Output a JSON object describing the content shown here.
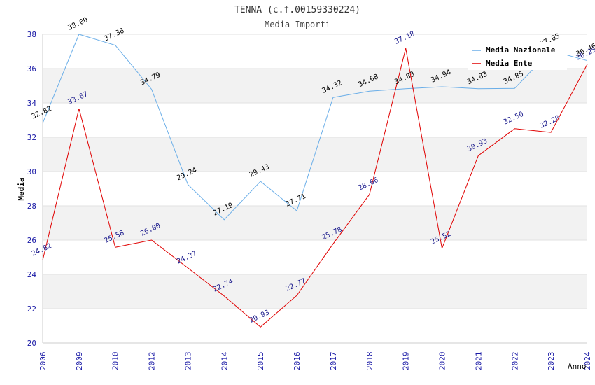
{
  "chart_data": {
    "type": "line",
    "title": "TENNA (c.f.00159330224)",
    "subtitle": "Media Importi",
    "ylabel": "Media",
    "xlabel": "Anno",
    "ylim": [
      20,
      38
    ],
    "yticks": [
      20,
      22,
      24,
      26,
      28,
      30,
      32,
      34,
      36,
      38
    ],
    "categories": [
      "2006",
      "2009",
      "2010",
      "2012",
      "2013",
      "2014",
      "2015",
      "2016",
      "2017",
      "2018",
      "2019",
      "2020",
      "2021",
      "2022",
      "2023",
      "2024"
    ],
    "series": [
      {
        "name": "Media Nazionale",
        "color": "#6aaee8",
        "values": [
          32.82,
          38.0,
          37.36,
          34.79,
          29.24,
          27.19,
          29.43,
          27.71,
          34.32,
          34.68,
          34.83,
          34.94,
          34.83,
          34.85,
          37.05,
          36.46
        ],
        "labels": [
          "32.82",
          "38.00",
          "37.36",
          "34.79",
          "29.24",
          "27.19",
          "29.43",
          "27.71",
          "34.32",
          "34.68",
          "34.83",
          "34.94",
          "34.83",
          "34.85",
          "37.05",
          "36.46"
        ]
      },
      {
        "name": "Media Ente",
        "color": "#e00000",
        "values": [
          24.82,
          33.67,
          25.58,
          26.0,
          24.37,
          22.74,
          20.93,
          22.77,
          25.78,
          28.66,
          37.18,
          25.52,
          30.93,
          32.5,
          32.28,
          36.25
        ],
        "labels": [
          "24.82",
          "33.67",
          "25.58",
          "26.00",
          "24.37",
          "22.74",
          "20.93",
          "22.77",
          "25.78",
          "28.66",
          "37.18",
          "25.52",
          "30.93",
          "32.50",
          "32.28",
          "36.25"
        ]
      }
    ],
    "legend_position": "top-right",
    "grid": true
  }
}
